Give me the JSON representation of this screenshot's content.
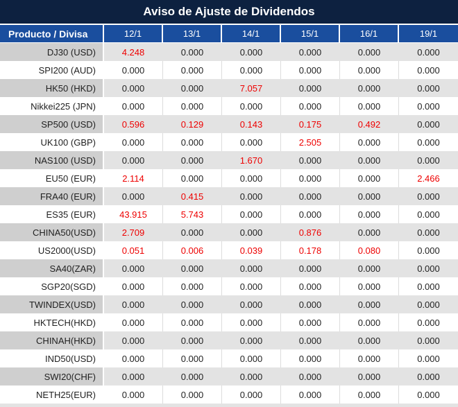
{
  "title": "Aviso de Ajuste de Dividendos",
  "table": {
    "product_header": "Producto / Divisa",
    "date_columns": [
      "12/1",
      "13/1",
      "14/1",
      "15/1",
      "16/1",
      "19/1"
    ],
    "zero_value": "0.000",
    "rows": [
      {
        "product": "DJ30 (USD)",
        "values": [
          "4.248",
          "0.000",
          "0.000",
          "0.000",
          "0.000",
          "0.000"
        ]
      },
      {
        "product": "SPI200 (AUD)",
        "values": [
          "0.000",
          "0.000",
          "0.000",
          "0.000",
          "0.000",
          "0.000"
        ]
      },
      {
        "product": "HK50 (HKD)",
        "values": [
          "0.000",
          "0.000",
          "7.057",
          "0.000",
          "0.000",
          "0.000"
        ]
      },
      {
        "product": "Nikkei225 (JPN)",
        "values": [
          "0.000",
          "0.000",
          "0.000",
          "0.000",
          "0.000",
          "0.000"
        ]
      },
      {
        "product": "SP500 (USD)",
        "values": [
          "0.596",
          "0.129",
          "0.143",
          "0.175",
          "0.492",
          "0.000"
        ]
      },
      {
        "product": "UK100 (GBP)",
        "values": [
          "0.000",
          "0.000",
          "0.000",
          "2.505",
          "0.000",
          "0.000"
        ]
      },
      {
        "product": "NAS100 (USD)",
        "values": [
          "0.000",
          "0.000",
          "1.670",
          "0.000",
          "0.000",
          "0.000"
        ]
      },
      {
        "product": "EU50 (EUR)",
        "values": [
          "2.114",
          "0.000",
          "0.000",
          "0.000",
          "0.000",
          "2.466"
        ]
      },
      {
        "product": "FRA40 (EUR)",
        "values": [
          "0.000",
          "0.415",
          "0.000",
          "0.000",
          "0.000",
          "0.000"
        ]
      },
      {
        "product": "ES35 (EUR)",
        "values": [
          "43.915",
          "5.743",
          "0.000",
          "0.000",
          "0.000",
          "0.000"
        ]
      },
      {
        "product": "CHINA50(USD)",
        "values": [
          "2.709",
          "0.000",
          "0.000",
          "0.876",
          "0.000",
          "0.000"
        ]
      },
      {
        "product": "US2000(USD)",
        "values": [
          "0.051",
          "0.006",
          "0.039",
          "0.178",
          "0.080",
          "0.000"
        ]
      },
      {
        "product": "SA40(ZAR)",
        "values": [
          "0.000",
          "0.000",
          "0.000",
          "0.000",
          "0.000",
          "0.000"
        ]
      },
      {
        "product": "SGP20(SGD)",
        "values": [
          "0.000",
          "0.000",
          "0.000",
          "0.000",
          "0.000",
          "0.000"
        ]
      },
      {
        "product": "TWINDEX(USD)",
        "values": [
          "0.000",
          "0.000",
          "0.000",
          "0.000",
          "0.000",
          "0.000"
        ]
      },
      {
        "product": "HKTECH(HKD)",
        "values": [
          "0.000",
          "0.000",
          "0.000",
          "0.000",
          "0.000",
          "0.000"
        ]
      },
      {
        "product": "CHINAH(HKD)",
        "values": [
          "0.000",
          "0.000",
          "0.000",
          "0.000",
          "0.000",
          "0.000"
        ]
      },
      {
        "product": "IND50(USD)",
        "values": [
          "0.000",
          "0.000",
          "0.000",
          "0.000",
          "0.000",
          "0.000"
        ]
      },
      {
        "product": "SWI20(CHF)",
        "values": [
          "0.000",
          "0.000",
          "0.000",
          "0.000",
          "0.000",
          "0.000"
        ]
      },
      {
        "product": "NETH25(EUR)",
        "values": [
          "0.000",
          "0.000",
          "0.000",
          "0.000",
          "0.000",
          "0.000"
        ]
      }
    ]
  },
  "colors": {
    "title_bg": "#0D2140",
    "header_bg": "#1A4E9E",
    "row_alt_bg": "#E3E3E3",
    "row_alt_first_col_bg": "#CFCFCF",
    "highlight_red": "#EE0000",
    "text_dark": "#1F1F1F"
  }
}
